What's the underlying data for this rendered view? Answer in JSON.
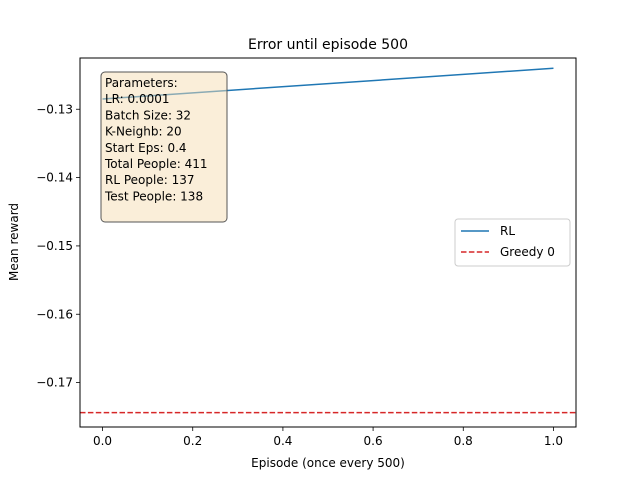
{
  "chart_data": {
    "type": "line",
    "title": "Error until episode 500",
    "xlabel": "Episode (once every 500)",
    "ylabel": "Mean reward",
    "xlim": [
      -0.05,
      1.05
    ],
    "ylim": [
      -0.1765,
      -0.1225
    ],
    "xticks": [
      0.0,
      0.2,
      0.4,
      0.6,
      0.8,
      1.0
    ],
    "xtick_labels": [
      "0.0",
      "0.2",
      "0.4",
      "0.6",
      "0.8",
      "1.0"
    ],
    "yticks": [
      -0.13,
      -0.14,
      -0.15,
      -0.16,
      -0.17
    ],
    "ytick_labels": [
      "−0.13",
      "−0.14",
      "−0.15",
      "−0.16",
      "−0.17"
    ],
    "grid": false,
    "legend_position": "center-right",
    "series": [
      {
        "name": "RL",
        "style": "solid",
        "color": "#1f77b4",
        "x": [
          0.0,
          1.0
        ],
        "y": [
          -0.1285,
          -0.124
        ]
      },
      {
        "name": "Greedy 0",
        "style": "dashed",
        "color": "#d62728",
        "y": -0.1744
      }
    ],
    "annotation": {
      "lines": [
        "Parameters:",
        "LR: 0.0001",
        "Batch Size: 32",
        "K-Neighb: 20",
        "Start Eps: 0.4",
        "Total People: 411",
        "RL People: 137",
        "Test People: 138"
      ],
      "background": "#f5deb3",
      "border": "#555555"
    }
  }
}
